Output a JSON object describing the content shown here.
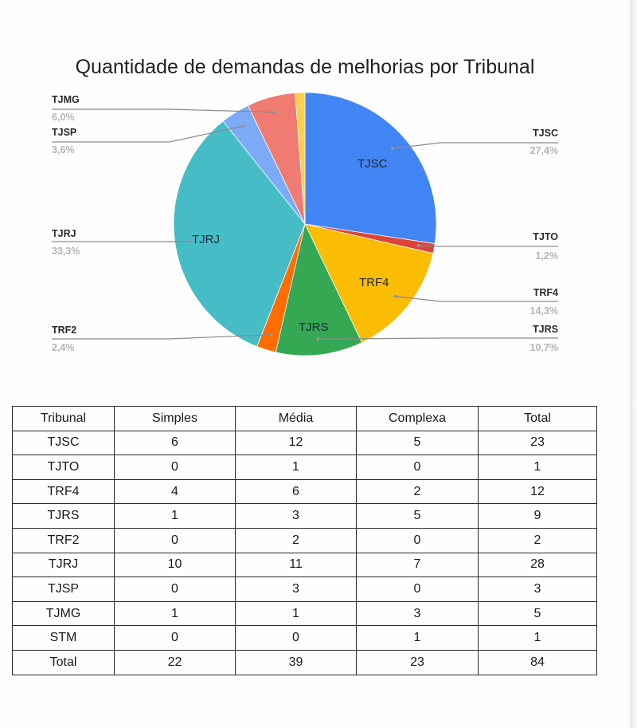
{
  "chart_data": [
    {
      "type": "pie",
      "title": "Quantidade de demandas de melhorias por Tribunal",
      "categories": [
        "TJSC",
        "TJTO",
        "TRF4",
        "TJRS",
        "TRF2",
        "TJRJ",
        "TJSP",
        "TJMG",
        "STM"
      ],
      "values": [
        23,
        1,
        12,
        9,
        2,
        28,
        3,
        5,
        1
      ],
      "percent_labels": [
        "27,4%",
        "1,2%",
        "14,3%",
        "10,7%",
        "2,4%",
        "33,3%",
        "3,6%",
        "6,0%",
        ""
      ],
      "colors": [
        "#4285f4",
        "#db4437",
        "#fbbc04",
        "#34a853",
        "#ff6d01",
        "#46bdc6",
        "#7baaf7",
        "#f07b72",
        "#fcd04f"
      ],
      "legend_position": "labeled callouts"
    },
    {
      "type": "table",
      "columns": [
        "Tribunal",
        "Simples",
        "Média",
        "Complexa",
        "Total"
      ],
      "rows": [
        [
          "TJSC",
          "6",
          "12",
          "5",
          "23"
        ],
        [
          "TJTO",
          "0",
          "1",
          "0",
          "1"
        ],
        [
          "TRF4",
          "4",
          "6",
          "2",
          "12"
        ],
        [
          "TJRS",
          "1",
          "3",
          "5",
          "9"
        ],
        [
          "TRF2",
          "0",
          "2",
          "0",
          "2"
        ],
        [
          "TJRJ",
          "10",
          "11",
          "7",
          "28"
        ],
        [
          "TJSP",
          "0",
          "3",
          "0",
          "3"
        ],
        [
          "TJMG",
          "1",
          "1",
          "3",
          "5"
        ],
        [
          "STM",
          "0",
          "0",
          "1",
          "1"
        ],
        [
          "Total",
          "22",
          "39",
          "23",
          "84"
        ]
      ]
    }
  ],
  "chart": {
    "title": "Quantidade de demandas de melhorias por Tribunal",
    "callouts": {
      "tjmg": {
        "name": "TJMG",
        "pct": "6,0%"
      },
      "tjsp": {
        "name": "TJSP",
        "pct": "3,6%"
      },
      "tjrj": {
        "name": "TJRJ",
        "pct": "33,3%"
      },
      "trf2": {
        "name": "TRF2",
        "pct": "2,4%"
      },
      "tjsc": {
        "name": "TJSC",
        "pct": "27,4%"
      },
      "tjto": {
        "name": "TJTO",
        "pct": "1,2%"
      },
      "trf4": {
        "name": "TRF4",
        "pct": "14,3%"
      },
      "tjrs": {
        "name": "TJRS",
        "pct": "10,7%"
      }
    },
    "inside_labels": {
      "tjsc": "TJSC",
      "trf4": "TRF4",
      "tjrs": "TJRS",
      "tjrj": "TJRJ"
    }
  },
  "table": {
    "headers": [
      "Tribunal",
      "Simples",
      "Média",
      "Complexa",
      "Total"
    ],
    "rows": [
      [
        "TJSC",
        "6",
        "12",
        "5",
        "23"
      ],
      [
        "TJTO",
        "0",
        "1",
        "0",
        "1"
      ],
      [
        "TRF4",
        "4",
        "6",
        "2",
        "12"
      ],
      [
        "TJRS",
        "1",
        "3",
        "5",
        "9"
      ],
      [
        "TRF2",
        "0",
        "2",
        "0",
        "2"
      ],
      [
        "TJRJ",
        "10",
        "11",
        "7",
        "28"
      ],
      [
        "TJSP",
        "0",
        "3",
        "0",
        "3"
      ],
      [
        "TJMG",
        "1",
        "1",
        "3",
        "5"
      ],
      [
        "STM",
        "0",
        "0",
        "1",
        "1"
      ],
      [
        "Total",
        "22",
        "39",
        "23",
        "84"
      ]
    ]
  }
}
